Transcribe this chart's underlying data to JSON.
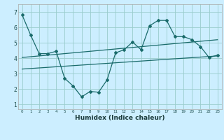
{
  "xlabel": "Humidex (Indice chaleur)",
  "bg_color": "#cceeff",
  "grid_color": "#99cccc",
  "line_color": "#1a6b6b",
  "xlim": [
    -0.5,
    23.5
  ],
  "ylim": [
    0.7,
    7.5
  ],
  "yticks": [
    1,
    2,
    3,
    4,
    5,
    6,
    7
  ],
  "xticks": [
    0,
    1,
    2,
    3,
    4,
    5,
    6,
    7,
    8,
    9,
    10,
    11,
    12,
    13,
    14,
    15,
    16,
    17,
    18,
    19,
    20,
    21,
    22,
    23
  ],
  "series1_x": [
    0,
    1,
    2,
    3,
    4,
    5,
    6,
    7,
    8,
    9,
    10,
    11,
    12,
    13,
    14,
    15,
    16,
    17,
    18,
    19,
    20,
    21,
    22,
    23
  ],
  "series1_y": [
    6.8,
    5.5,
    4.3,
    4.3,
    4.45,
    2.7,
    2.2,
    1.5,
    1.85,
    1.8,
    2.6,
    4.35,
    4.55,
    5.05,
    4.55,
    6.1,
    6.45,
    6.45,
    5.4,
    5.4,
    5.2,
    4.75,
    4.05,
    4.2
  ],
  "trend1_x": [
    0,
    23
  ],
  "trend1_y": [
    4.05,
    5.2
  ],
  "trend2_x": [
    0,
    23
  ],
  "trend2_y": [
    3.3,
    4.15
  ]
}
